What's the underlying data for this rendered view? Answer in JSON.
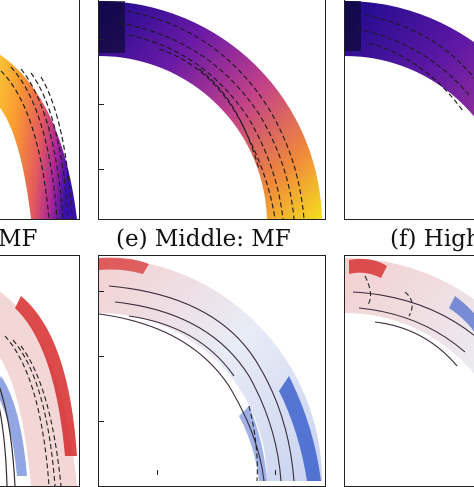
{
  "figure": {
    "captions": {
      "d_partial": "MF",
      "e": "(e) Middle: MF",
      "f_partial": "(f) High"
    },
    "colors": {
      "plasma_dark": "#1a0a8c",
      "plasma_purple": "#8a1fa4",
      "plasma_pink": "#d24b6c",
      "plasma_orange": "#f89540",
      "plasma_yellow": "#f0f921",
      "diverging_red": "#d62a2a",
      "diverging_blue": "#2a52c8",
      "contour_dark": "#3a2a2a"
    }
  }
}
